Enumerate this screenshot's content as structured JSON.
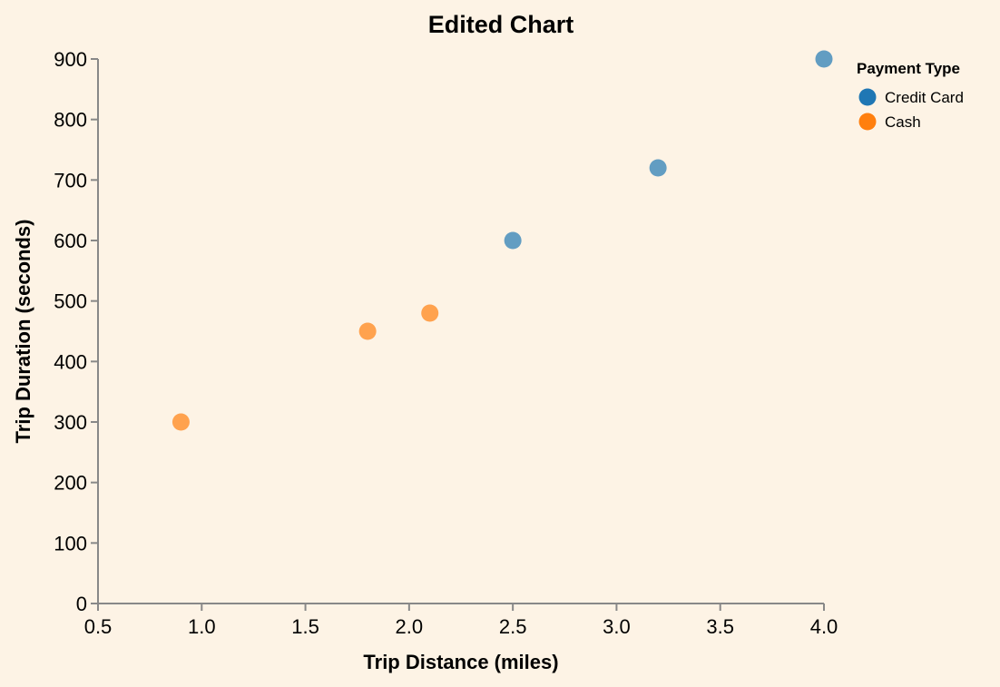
{
  "chart_data": {
    "type": "scatter",
    "title": "Edited Chart",
    "xlabel": "Trip Distance (miles)",
    "ylabel": "Trip Duration (seconds)",
    "xlim": [
      0.5,
      4.0
    ],
    "ylim": [
      0,
      900
    ],
    "x_ticks": [
      "0.5",
      "1.0",
      "1.5",
      "2.0",
      "2.5",
      "3.0",
      "3.5",
      "4.0"
    ],
    "y_ticks": [
      "0",
      "100",
      "200",
      "300",
      "400",
      "500",
      "600",
      "700",
      "800",
      "900"
    ],
    "grid": false,
    "legend": {
      "title": "Payment Type",
      "placement": "top-right"
    },
    "series": [
      {
        "name": "Credit Card",
        "color": "#1f77b4",
        "points": [
          {
            "x": 2.5,
            "y": 600
          },
          {
            "x": 3.2,
            "y": 720
          },
          {
            "x": 4.0,
            "y": 900
          }
        ]
      },
      {
        "name": "Cash",
        "color": "#ff7f0e",
        "points": [
          {
            "x": 0.9,
            "y": 300
          },
          {
            "x": 1.8,
            "y": 450
          },
          {
            "x": 2.1,
            "y": 480
          }
        ]
      }
    ]
  }
}
